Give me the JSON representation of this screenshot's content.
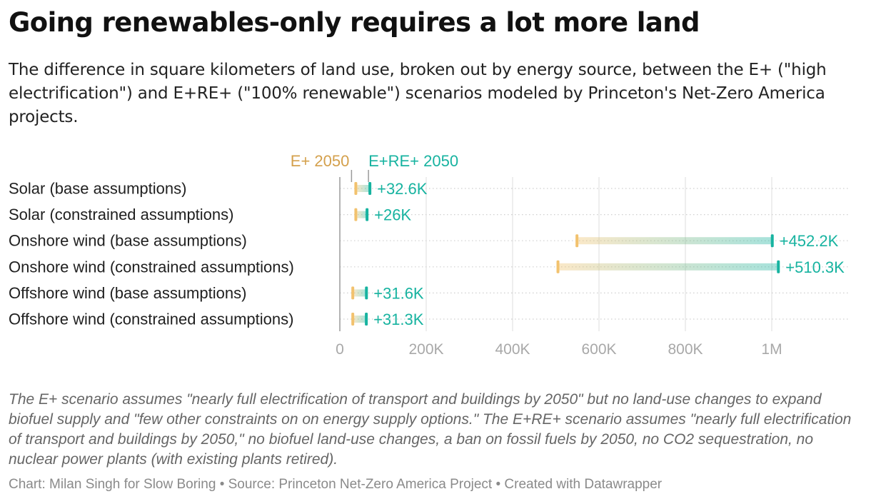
{
  "title": "Going renewables-only requires a lot more land",
  "subtitle": "The difference in square kilometers of land use, broken out by energy source, between the E+ (\"high electrification\") and E+RE+ (\"100% renewable\") scenarios modeled by Princeton's Net-Zero America projects.",
  "colors": {
    "start": "#f2c26e",
    "end": "#17b3a0",
    "grid": "#dcdcdc",
    "axis_text": "#a8a8a8"
  },
  "chart_data": {
    "type": "range",
    "categories": [
      "Solar (base assumptions)",
      "Solar (constrained assumptions)",
      "Onshore wind (base assumptions)",
      "Onshore wind (constrained assumptions)",
      "Offshore wind (base assumptions)",
      "Offshore wind (constrained assumptions)"
    ],
    "series": [
      {
        "name": "E+ 2050",
        "values": [
          37000,
          37000,
          549000,
          505000,
          30000,
          30000
        ]
      },
      {
        "name": "E+RE+ 2050",
        "values": [
          69600,
          63000,
          1001200,
          1015300,
          61600,
          61300
        ]
      }
    ],
    "labels": [
      "+32.6K",
      "+26K",
      "+452.2K",
      "+510.3K",
      "+31.6K",
      "+31.3K"
    ],
    "xticks": [
      {
        "value": 0,
        "label": "0"
      },
      {
        "value": 200000,
        "label": "200K"
      },
      {
        "value": 400000,
        "label": "400K"
      },
      {
        "value": 600000,
        "label": "600K"
      },
      {
        "value": 800000,
        "label": "800K"
      },
      {
        "value": 1000000,
        "label": "1M"
      }
    ],
    "xlim": [
      0,
      1180000
    ],
    "legend_position": "top",
    "grid": true
  },
  "note": "The E+ scenario assumes \"nearly full electrification of transport and buildings by 2050\" but no land-use changes to expand biofuel supply and \"few other constraints on on energy supply options.\" The E+RE+ scenario assumes \"nearly full electrification of transport and buildings by 2050,\" no biofuel land-use changes, a ban on fossil fuels by 2050, no CO2 sequestration, no nuclear power plants (with existing plants retired).",
  "footer": "Chart: Milan Singh for Slow Boring • Source: Princeton Net-Zero America Project • Created with Datawrapper"
}
